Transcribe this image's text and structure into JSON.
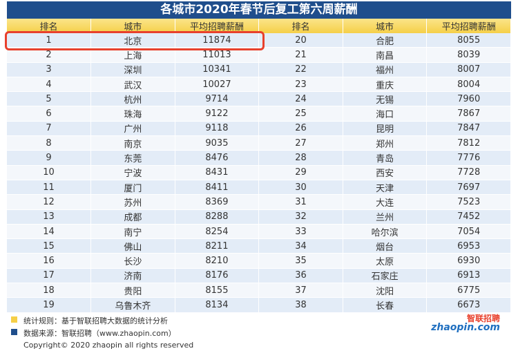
{
  "title": "各城市2020年春节后复工第六周薪酬",
  "table": {
    "headers": [
      "排名",
      "城市",
      "平均招聘薪酬",
      "排名",
      "城市",
      "平均招聘薪酬"
    ],
    "rows": [
      [
        1,
        "北京",
        11874,
        20,
        "合肥",
        8055
      ],
      [
        2,
        "上海",
        11013,
        21,
        "南昌",
        8039
      ],
      [
        3,
        "深圳",
        10341,
        22,
        "福州",
        8007
      ],
      [
        4,
        "武汉",
        10027,
        23,
        "重庆",
        8004
      ],
      [
        5,
        "杭州",
        9714,
        24,
        "无锡",
        7960
      ],
      [
        6,
        "珠海",
        9122,
        25,
        "海口",
        7867
      ],
      [
        7,
        "广州",
        9118,
        26,
        "昆明",
        7847
      ],
      [
        8,
        "南京",
        9035,
        27,
        "郑州",
        7812
      ],
      [
        9,
        "东莞",
        8476,
        28,
        "青岛",
        7776
      ],
      [
        10,
        "宁波",
        8431,
        29,
        "西安",
        7728
      ],
      [
        11,
        "厦门",
        8411,
        30,
        "天津",
        7697
      ],
      [
        12,
        "苏州",
        8369,
        31,
        "大连",
        7523
      ],
      [
        13,
        "成都",
        8288,
        32,
        "兰州",
        7452
      ],
      [
        14,
        "南宁",
        8254,
        33,
        "哈尔滨",
        7054
      ],
      [
        15,
        "佛山",
        8211,
        34,
        "烟台",
        6953
      ],
      [
        16,
        "长沙",
        8210,
        35,
        "太原",
        6930
      ],
      [
        17,
        "济南",
        8176,
        36,
        "石家庄",
        6913
      ],
      [
        18,
        "贵阳",
        8155,
        37,
        "沈阳",
        6775
      ],
      [
        19,
        "乌鲁木齐",
        8134,
        38,
        "长春",
        6673
      ]
    ]
  },
  "notes": [
    "统计规则：基于智联招聘大数据的统计分析",
    "数据来源：智联招聘（www.zhaopin.com）"
  ],
  "copyright": "Copyright© 2020 zhaopin all rights reserved",
  "logo": {
    "brand": "智联招聘",
    "domain": "zhaopin.com"
  }
}
